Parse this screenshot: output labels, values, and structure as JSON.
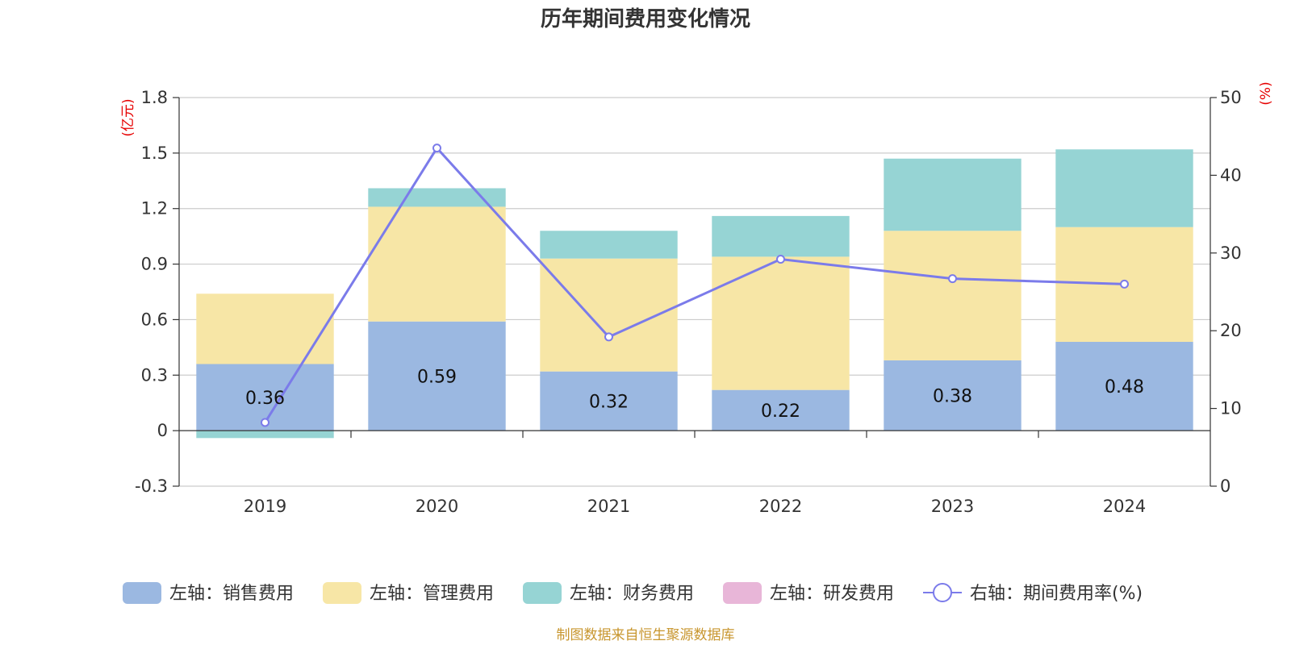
{
  "chart_data": {
    "type": "bar",
    "title": "历年期间费用变化情况",
    "categories": [
      "2019",
      "2020",
      "2021",
      "2022",
      "2023",
      "2024"
    ],
    "left_axis": {
      "unit": "(亿元)",
      "min": -0.3,
      "max": 1.8,
      "ticks": [
        -0.3,
        0,
        0.3,
        0.6,
        0.9,
        1.2,
        1.5,
        1.8
      ],
      "tick_labels": [
        "-0.3",
        "0",
        "0.3",
        "0.6",
        "0.9",
        "1.2",
        "1.5",
        "1.8"
      ]
    },
    "right_axis": {
      "unit": "(%)",
      "min": 0,
      "max": 50,
      "ticks": [
        0,
        10,
        20,
        30,
        40,
        50
      ],
      "tick_labels": [
        "0",
        "10",
        "20",
        "30",
        "40",
        "50"
      ]
    },
    "series": [
      {
        "name": "左轴：销售费用",
        "type": "bar",
        "axis": "left",
        "color": "#9bb8e1",
        "values": [
          0.36,
          0.59,
          0.32,
          0.22,
          0.38,
          0.48
        ],
        "labels": [
          "0.36",
          "0.59",
          "0.32",
          "0.22",
          "0.38",
          "0.48"
        ]
      },
      {
        "name": "左轴：管理费用",
        "type": "bar",
        "axis": "left",
        "color": "#f7e6a6",
        "values": [
          0.38,
          0.62,
          0.61,
          0.72,
          0.7,
          0.62
        ]
      },
      {
        "name": "左轴：财务费用",
        "type": "bar",
        "axis": "left",
        "color": "#96d4d4",
        "values": [
          -0.04,
          0.1,
          0.15,
          0.22,
          0.39,
          0.42
        ]
      },
      {
        "name": "左轴：研发费用",
        "type": "bar",
        "axis": "left",
        "color": "#e8b6d8",
        "values": [
          0,
          0,
          0,
          0,
          0,
          0
        ]
      },
      {
        "name": "右轴：期间费用率(%)",
        "type": "line",
        "axis": "right",
        "color": "#7b7bea",
        "values": [
          8.2,
          43.5,
          19.2,
          29.2,
          26.7,
          26.0
        ]
      }
    ],
    "legend_position": "bottom",
    "grid": true
  },
  "source_note": "制图数据来自恒生聚源数据库"
}
